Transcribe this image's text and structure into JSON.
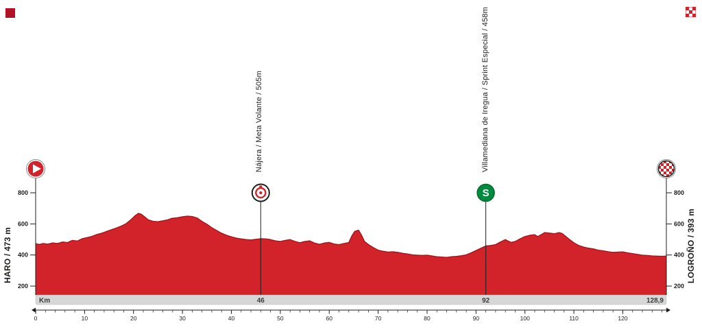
{
  "labels": {
    "start": "HARO / 473 m",
    "finish": "LOGROÑO / 393 m"
  },
  "km_bar": {
    "unit_label": "Km",
    "markers": [
      {
        "km": 46,
        "label": "46"
      },
      {
        "km": 92,
        "label": "92"
      },
      {
        "km": 128.9,
        "label": "128,9",
        "align": "end"
      }
    ]
  },
  "colors": {
    "profile_fill": "#d2232a",
    "profile_stroke": "#9e151b",
    "axis": "#1d1d1b",
    "bar_fill": "#d7d7d7",
    "bar_text": "#3c3c3b",
    "sprint_green": "#008a3e",
    "white": "#ffffff"
  },
  "chart_data": {
    "type": "area",
    "title": "Stage elevation profile",
    "xlabel": "Km",
    "ylabel": "m",
    "x_range": [
      0,
      128.9
    ],
    "y_ticks": [
      200,
      400,
      600,
      800
    ],
    "x_major_ticks": [
      0,
      10,
      20,
      30,
      40,
      50,
      60,
      70,
      80,
      90,
      100,
      110,
      120
    ],
    "x_minor_step": 2,
    "grid": false,
    "start": {
      "name": "HARO",
      "elevation_m": 473
    },
    "finish": {
      "name": "LOGROÑO",
      "elevation_m": 393
    },
    "waypoints": [
      {
        "km": 46,
        "name": "Nájera / Meta Volante / 505m",
        "type": "meta-volante",
        "elevation_m": 505,
        "badge": ""
      },
      {
        "km": 92,
        "name": "Villamediana de Iregua / Sprint Especial / 458m",
        "type": "sprint-especial",
        "elevation_m": 458,
        "badge": "S"
      }
    ],
    "profile": [
      [
        0,
        473
      ],
      [
        0.8,
        468
      ],
      [
        1.5,
        474
      ],
      [
        2.5,
        470
      ],
      [
        3.5,
        478
      ],
      [
        4.5,
        474
      ],
      [
        5.5,
        484
      ],
      [
        6.5,
        480
      ],
      [
        7.5,
        494
      ],
      [
        8.5,
        490
      ],
      [
        9.5,
        505
      ],
      [
        10.5,
        512
      ],
      [
        11.5,
        520
      ],
      [
        12.5,
        532
      ],
      [
        13.5,
        540
      ],
      [
        14.5,
        552
      ],
      [
        15.5,
        563
      ],
      [
        16.5,
        574
      ],
      [
        17.5,
        586
      ],
      [
        18.5,
        602
      ],
      [
        19.5,
        628
      ],
      [
        20.3,
        652
      ],
      [
        21,
        668
      ],
      [
        21.6,
        662
      ],
      [
        22.2,
        648
      ],
      [
        23,
        626
      ],
      [
        24,
        617
      ],
      [
        25,
        614
      ],
      [
        26,
        620
      ],
      [
        27,
        626
      ],
      [
        27.8,
        636
      ],
      [
        29,
        640
      ],
      [
        30,
        646
      ],
      [
        31,
        650
      ],
      [
        32,
        648
      ],
      [
        33,
        638
      ],
      [
        34,
        616
      ],
      [
        35,
        598
      ],
      [
        36,
        576
      ],
      [
        37,
        558
      ],
      [
        38,
        540
      ],
      [
        39,
        527
      ],
      [
        40,
        517
      ],
      [
        41,
        509
      ],
      [
        42,
        504
      ],
      [
        43,
        499
      ],
      [
        44,
        497
      ],
      [
        45,
        501
      ],
      [
        46,
        505
      ],
      [
        47,
        504
      ],
      [
        48,
        499
      ],
      [
        49,
        491
      ],
      [
        50,
        487
      ],
      [
        51,
        494
      ],
      [
        52,
        499
      ],
      [
        53,
        487
      ],
      [
        54,
        479
      ],
      [
        55,
        487
      ],
      [
        56,
        491
      ],
      [
        57,
        477
      ],
      [
        58,
        469
      ],
      [
        59,
        477
      ],
      [
        60,
        481
      ],
      [
        61,
        471
      ],
      [
        62,
        467
      ],
      [
        63,
        474
      ],
      [
        64,
        480
      ],
      [
        64.6,
        522
      ],
      [
        65.2,
        552
      ],
      [
        66,
        560
      ],
      [
        66.6,
        528
      ],
      [
        67.2,
        488
      ],
      [
        68,
        468
      ],
      [
        69,
        448
      ],
      [
        70,
        431
      ],
      [
        71,
        424
      ],
      [
        72,
        419
      ],
      [
        73,
        421
      ],
      [
        74,
        417
      ],
      [
        75,
        411
      ],
      [
        76,
        407
      ],
      [
        77,
        401
      ],
      [
        78,
        399
      ],
      [
        79,
        397
      ],
      [
        80,
        399
      ],
      [
        81,
        394
      ],
      [
        82,
        389
      ],
      [
        83,
        387
      ],
      [
        84,
        385
      ],
      [
        85,
        389
      ],
      [
        86,
        391
      ],
      [
        87,
        395
      ],
      [
        88,
        401
      ],
      [
        89,
        414
      ],
      [
        90,
        429
      ],
      [
        91,
        444
      ],
      [
        92,
        458
      ],
      [
        93,
        461
      ],
      [
        94,
        467
      ],
      [
        95,
        484
      ],
      [
        96,
        499
      ],
      [
        96.6,
        489
      ],
      [
        97.2,
        481
      ],
      [
        98,
        487
      ],
      [
        99,
        504
      ],
      [
        100,
        519
      ],
      [
        101,
        527
      ],
      [
        102,
        531
      ],
      [
        102.6,
        519
      ],
      [
        103.2,
        529
      ],
      [
        104,
        544
      ],
      [
        105,
        541
      ],
      [
        106,
        537
      ],
      [
        107,
        544
      ],
      [
        107.6,
        539
      ],
      [
        108.4,
        518
      ],
      [
        109.2,
        498
      ],
      [
        110,
        479
      ],
      [
        111,
        461
      ],
      [
        112,
        451
      ],
      [
        113,
        444
      ],
      [
        114,
        439
      ],
      [
        115,
        431
      ],
      [
        116,
        427
      ],
      [
        117,
        421
      ],
      [
        118,
        417
      ],
      [
        119,
        419
      ],
      [
        120,
        420
      ],
      [
        121,
        414
      ],
      [
        122,
        409
      ],
      [
        123,
        404
      ],
      [
        124,
        399
      ],
      [
        125,
        397
      ],
      [
        126,
        394
      ],
      [
        127,
        393
      ],
      [
        128,
        392
      ],
      [
        128.9,
        393
      ]
    ]
  }
}
